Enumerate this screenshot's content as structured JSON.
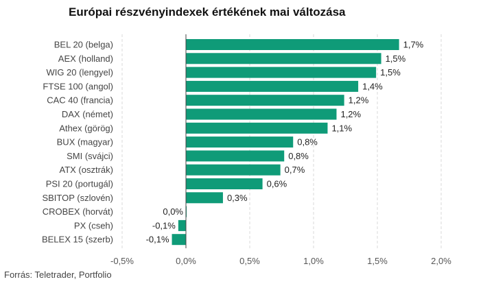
{
  "chart_data": {
    "type": "bar",
    "orientation": "horizontal",
    "title": "Európai részvényindexek értékének mai változása",
    "categories": [
      "BEL 20 (belga)",
      "AEX (holland)",
      "WIG 20 (lengyel)",
      "FTSE 100 (angol)",
      "CAC 40 (francia)",
      "DAX (német)",
      "Athex (görög)",
      "BUX (magyar)",
      "SMI (svájci)",
      "ATX (osztrák)",
      "PSI 20 (portugál)",
      "SBITOP (szlovén)",
      "CROBEX (horvát)",
      "PX (cseh)",
      "BELEX 15 (szerb)"
    ],
    "values": [
      1.67,
      1.53,
      1.49,
      1.35,
      1.24,
      1.18,
      1.11,
      0.84,
      0.77,
      0.74,
      0.6,
      0.29,
      0.0,
      -0.06,
      -0.11
    ],
    "value_labels": [
      "1,7%",
      "1,5%",
      "1,5%",
      "1,4%",
      "1,2%",
      "1,2%",
      "1,1%",
      "0,8%",
      "0,8%",
      "0,7%",
      "0,6%",
      "0,3%",
      "0,0%",
      "-0,1%",
      "-0,1%"
    ],
    "xlim": [
      -0.5,
      2.0
    ],
    "xticks": [
      -0.5,
      0.0,
      0.5,
      1.0,
      1.5,
      2.0
    ],
    "xtick_labels": [
      "-0,5%",
      "0,0%",
      "0,5%",
      "1,0%",
      "1,5%",
      "2,0%"
    ],
    "grid": true,
    "bar_color": "#0f9b78",
    "xlabel": "",
    "ylabel": ""
  },
  "source": "Forrás: Teletrader, Portfolio"
}
